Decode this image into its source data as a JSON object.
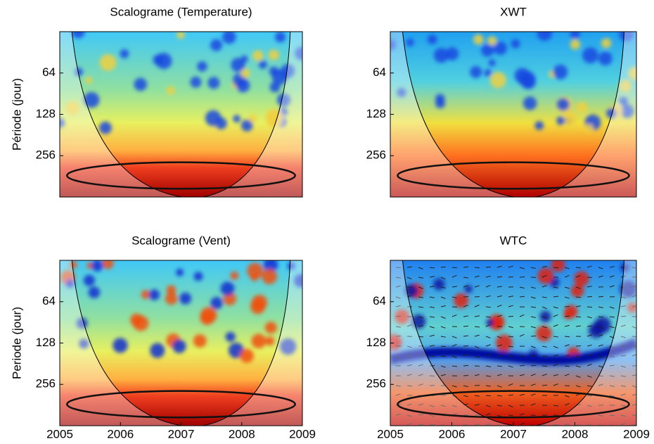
{
  "chart_data": [
    {
      "type": "wavelet",
      "title": "Scalograme (Temperature)",
      "ylabel": "Période (jour)",
      "log_scale": true,
      "y_inverted": true,
      "ylim": [
        32,
        512
      ],
      "yticks": [
        64,
        128,
        256
      ]
    },
    {
      "type": "wavelet",
      "title": "XWT",
      "log_scale": true,
      "y_inverted": true,
      "ylim": [
        32,
        512
      ],
      "yticks": [
        64,
        128,
        256
      ]
    },
    {
      "type": "wavelet",
      "title": "Scalograme (Vent)",
      "ylabel": "Periode (jour)",
      "log_scale": true,
      "y_inverted": true,
      "ylim": [
        32,
        512
      ],
      "yticks": [
        64,
        128,
        256
      ],
      "xlim": [
        2005,
        2009
      ],
      "xticks": [
        2005,
        2006,
        2007,
        2008,
        2009
      ]
    },
    {
      "type": "wavelet",
      "title": "WTC",
      "log_scale": true,
      "y_inverted": true,
      "ylim": [
        32,
        512
      ],
      "yticks": [
        64,
        128,
        256
      ],
      "xlim": [
        2005,
        2009
      ],
      "xticks": [
        2005,
        2006,
        2007,
        2008,
        2009
      ]
    }
  ]
}
